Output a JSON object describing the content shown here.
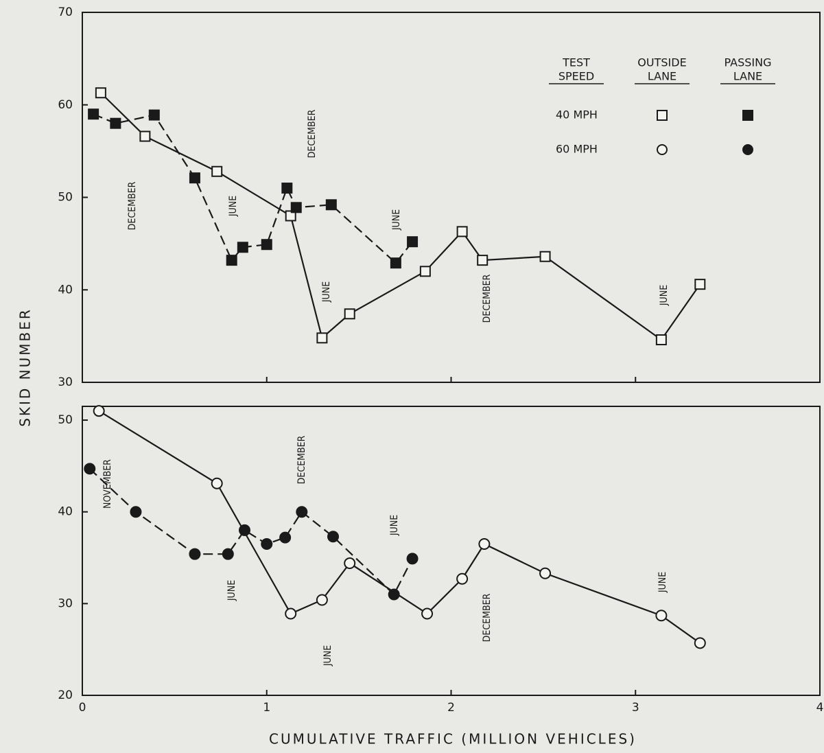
{
  "chart_data": [
    {
      "type": "line",
      "xlim": [
        0,
        4
      ],
      "xticks": [
        0,
        1,
        2,
        3,
        4
      ],
      "ylim": [
        30,
        70
      ],
      "yticks": [
        30,
        40,
        50,
        60,
        70
      ],
      "series": [
        {
          "marker": "square",
          "filled": false,
          "dashed": false,
          "color": "#1a1a1a",
          "x": [
            0.1,
            0.34,
            0.73,
            1.13,
            1.3,
            1.45,
            1.86,
            2.06,
            2.17,
            2.51,
            3.14,
            3.35
          ],
          "values": [
            61.3,
            56.6,
            52.8,
            48.0,
            34.8,
            37.4,
            42.0,
            46.3,
            43.2,
            43.6,
            34.6,
            40.6
          ]
        },
        {
          "marker": "square",
          "filled": true,
          "dashed": true,
          "color": "#1a1a1a",
          "x": [
            0.06,
            0.18,
            0.39,
            0.61,
            0.81,
            0.87,
            1.0,
            1.11,
            1.16,
            1.35,
            1.7,
            1.79
          ],
          "values": [
            59.0,
            58.0,
            58.9,
            52.1,
            43.2,
            44.6,
            44.9,
            51.0,
            48.9,
            49.2,
            42.9,
            45.2
          ]
        }
      ],
      "annotations": [
        "DECEMBER",
        "JUNE",
        "DECEMBER",
        "JUNE",
        "JUNE",
        "DECEMBER",
        "JUNE"
      ],
      "legend": {
        "headers": [
          [
            "TEST",
            "SPEED"
          ],
          [
            "OUTSIDE",
            "LANE"
          ],
          [
            "PASSING",
            "LANE"
          ]
        ],
        "rows": [
          "40 MPH",
          "60 MPH"
        ]
      }
    },
    {
      "type": "line",
      "xlim": [
        0,
        4
      ],
      "xticks": [
        0,
        1,
        2,
        3,
        4
      ],
      "ylim": [
        20,
        51.5
      ],
      "yticks": [
        20,
        30,
        40,
        50
      ],
      "series": [
        {
          "marker": "circle",
          "filled": false,
          "dashed": false,
          "color": "#1a1a1a",
          "x": [
            0.09,
            0.73,
            1.13,
            1.3,
            1.45,
            1.87,
            2.06,
            2.18,
            2.51,
            3.14,
            3.35
          ],
          "values": [
            51.0,
            43.1,
            28.9,
            30.4,
            34.4,
            28.9,
            32.7,
            36.5,
            33.3,
            28.7,
            25.7
          ]
        },
        {
          "marker": "circle",
          "filled": true,
          "dashed": true,
          "color": "#1a1a1a",
          "x": [
            0.04,
            0.29,
            0.61,
            0.79,
            0.88,
            1.0,
            1.1,
            1.19,
            1.36,
            1.69,
            1.79
          ],
          "values": [
            44.7,
            40.0,
            35.4,
            35.4,
            38.0,
            36.5,
            37.2,
            40.0,
            37.3,
            31.0,
            34.9
          ]
        }
      ],
      "annotations": [
        "NOVEMBER",
        "JUNE",
        "DECEMBER",
        "JUNE",
        "JUNE",
        "DECEMBER",
        "JUNE"
      ],
      "xlabel": "CUMULATIVE TRAFFIC (MILLION VEHICLES)",
      "ylabel": "SKID NUMBER"
    }
  ]
}
